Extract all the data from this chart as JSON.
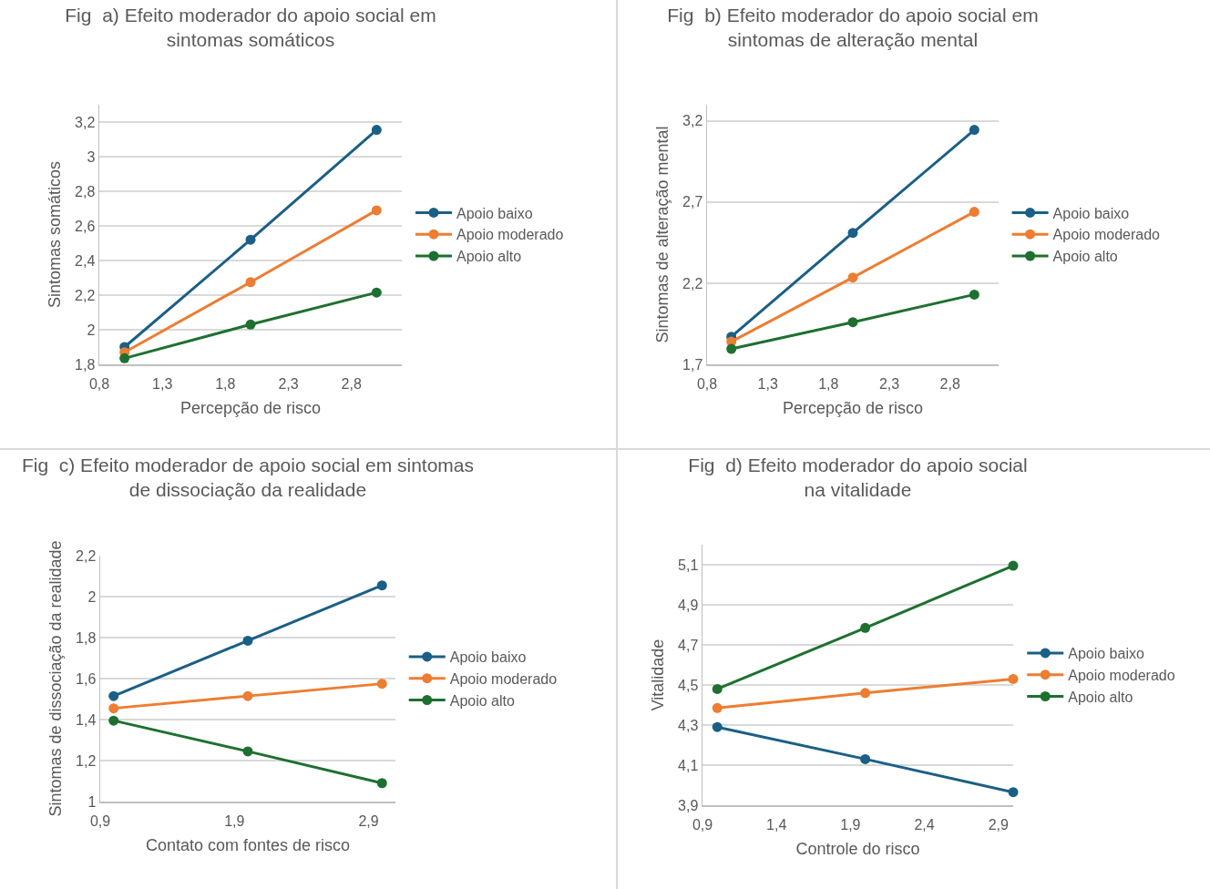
{
  "chart_data": [
    {
      "type": "line",
      "title": "Fig  a) Efeito moderador do apoio social em\nsintomas somáticos",
      "xlabel": "Percepção de risco",
      "ylabel": "Sintomas somáticos",
      "x": [
        1,
        2,
        3
      ],
      "xlim": [
        0.8,
        3.2
      ],
      "ylim": [
        1.8,
        3.3
      ],
      "xticks": [
        {
          "value": 0.8,
          "label": "0,8"
        },
        {
          "value": 1.3,
          "label": "1,3"
        },
        {
          "value": 1.8,
          "label": "1,8"
        },
        {
          "value": 2.3,
          "label": "2,3"
        },
        {
          "value": 2.8,
          "label": "2,8"
        }
      ],
      "yticks": [
        {
          "value": 1.8,
          "label": "1,8"
        },
        2,
        {
          "value": 2.2,
          "label": "2,2"
        },
        {
          "value": 2.4,
          "label": "2,4"
        },
        {
          "value": 2.6,
          "label": "2,6"
        },
        {
          "value": 2.8,
          "label": "2,8"
        },
        3,
        {
          "value": 3.2,
          "label": "3,2"
        }
      ],
      "series": [
        {
          "name": "Apoio baixo",
          "color": "#1a5f85",
          "values": [
            1.9,
            2.52,
            3.155
          ]
        },
        {
          "name": "Apoio moderado",
          "color": "#ed7d31",
          "values": [
            1.87,
            2.275,
            2.69
          ]
        },
        {
          "name": "Apoio alto",
          "color": "#1e7030",
          "values": [
            1.835,
            2.03,
            2.215
          ]
        }
      ],
      "grid": "y",
      "legend": "right",
      "marker": "circle",
      "line_style": "solid"
    },
    {
      "type": "line",
      "title": "Fig  b) Efeito moderador do apoio social em\nsintomas de alteração mental",
      "xlabel": "Percepção de risco",
      "ylabel": "Sintomas de alteração mental",
      "x": [
        1,
        2,
        3
      ],
      "xlim": [
        0.8,
        3.2
      ],
      "ylim": [
        1.7,
        3.3
      ],
      "xticks": [
        {
          "value": 0.8,
          "label": "0,8"
        },
        {
          "value": 1.3,
          "label": "1,3"
        },
        {
          "value": 1.8,
          "label": "1,8"
        },
        {
          "value": 2.3,
          "label": "2,3"
        },
        {
          "value": 2.8,
          "label": "2,8"
        }
      ],
      "yticks": [
        {
          "value": 1.7,
          "label": "1,7"
        },
        {
          "value": 2.2,
          "label": "2,2"
        },
        {
          "value": 2.7,
          "label": "2,7"
        },
        {
          "value": 3.2,
          "label": "3,2"
        }
      ],
      "series": [
        {
          "name": "Apoio baixo",
          "color": "#1a5f85",
          "values": [
            1.87,
            2.51,
            3.145
          ]
        },
        {
          "name": "Apoio moderado",
          "color": "#ed7d31",
          "values": [
            1.84,
            2.235,
            2.64
          ]
        },
        {
          "name": "Apoio alto",
          "color": "#1e7030",
          "values": [
            1.795,
            1.96,
            2.13
          ]
        }
      ],
      "grid": "y",
      "legend": "right",
      "marker": "circle",
      "line_style": "solid"
    },
    {
      "type": "line",
      "title": "Fig  c) Efeito moderador de apoio social em sintomas\nde dissociação da realidade",
      "xlabel": "Contato com fontes de risco",
      "ylabel": "Sintomas de dissociação da realidade",
      "x": [
        1,
        2,
        3
      ],
      "xlim": [
        0.9,
        3.1
      ],
      "ylim": [
        1,
        2.2
      ],
      "xticks": [
        {
          "value": 0.9,
          "label": "0,9"
        },
        {
          "value": 1.9,
          "label": "1,9"
        },
        {
          "value": 2.9,
          "label": "2,9"
        }
      ],
      "yticks": [
        1,
        {
          "value": 1.2,
          "label": "1,2"
        },
        {
          "value": 1.4,
          "label": "1,4"
        },
        {
          "value": 1.6,
          "label": "1,6"
        },
        {
          "value": 1.8,
          "label": "1,8"
        },
        2,
        {
          "value": 2.2,
          "label": "2,2"
        }
      ],
      "series": [
        {
          "name": "Apoio baixo",
          "color": "#1a5f85",
          "values": [
            1.515,
            1.785,
            2.055
          ]
        },
        {
          "name": "Apoio moderado",
          "color": "#ed7d31",
          "values": [
            1.455,
            1.515,
            1.575
          ]
        },
        {
          "name": "Apoio alto",
          "color": "#1e7030",
          "values": [
            1.395,
            1.245,
            1.09
          ]
        }
      ],
      "grid": "y",
      "legend": "right",
      "marker": "circle",
      "line_style": "solid"
    },
    {
      "type": "line",
      "title": "Fig  d) Efeito moderador do apoio social\nna vitalidade",
      "xlabel": "Controle do risco",
      "ylabel": "Vitalidade",
      "x": [
        1,
        2,
        3
      ],
      "xlim": [
        0.9,
        3.0
      ],
      "ylim": [
        3.9,
        5.2
      ],
      "xticks": [
        {
          "value": 0.9,
          "label": "0,9"
        },
        {
          "value": 1.4,
          "label": "1,4"
        },
        {
          "value": 1.9,
          "label": "1,9"
        },
        {
          "value": 2.4,
          "label": "2,4"
        },
        {
          "value": 2.9,
          "label": "2,9"
        }
      ],
      "yticks": [
        {
          "value": 3.9,
          "label": "3,9"
        },
        {
          "value": 4.1,
          "label": "4,1"
        },
        {
          "value": 4.3,
          "label": "4,3"
        },
        {
          "value": 4.5,
          "label": "4,5"
        },
        {
          "value": 4.7,
          "label": "4,7"
        },
        {
          "value": 4.9,
          "label": "4,9"
        },
        {
          "value": 5.1,
          "label": "5,1"
        }
      ],
      "series": [
        {
          "name": "Apoio baixo",
          "color": "#1a5f85",
          "values": [
            4.29,
            4.13,
            3.965
          ]
        },
        {
          "name": "Apoio moderado",
          "color": "#ed7d31",
          "values": [
            4.385,
            4.46,
            4.53
          ]
        },
        {
          "name": "Apoio alto",
          "color": "#1e7030",
          "values": [
            4.48,
            4.785,
            5.095
          ]
        }
      ],
      "grid": "y",
      "legend": "right",
      "marker": "circle",
      "line_style": "solid"
    }
  ]
}
